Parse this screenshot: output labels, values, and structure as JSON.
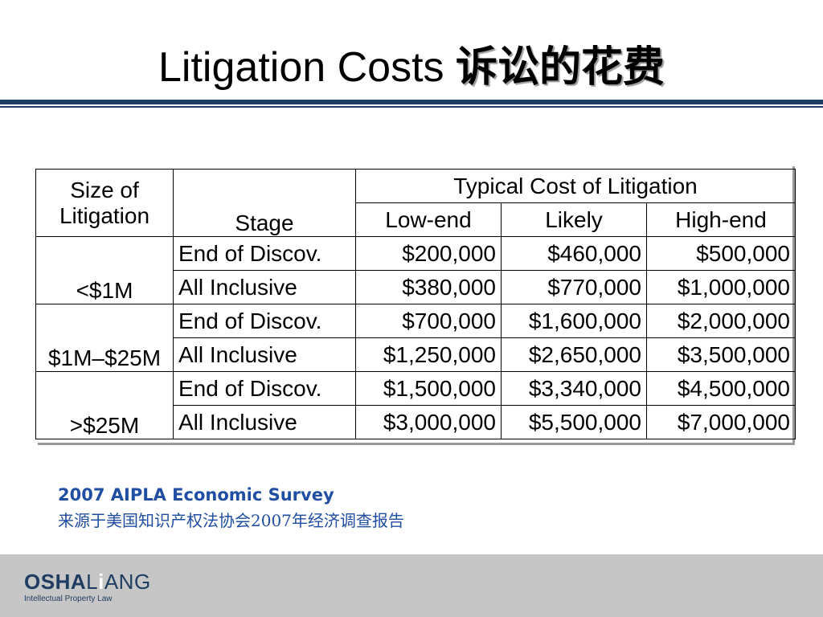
{
  "slide": {
    "title_en": "Litigation Costs",
    "title_cn": "诉讼的花费"
  },
  "table": {
    "header": {
      "size_label_line1": "Size of",
      "size_label_line2": "Litigation",
      "stage_label": "Stage",
      "group_label": "Typical Cost of Litigation",
      "cols": [
        "Low-end",
        "Likely",
        "High-end"
      ]
    },
    "groups": [
      {
        "size": "<$1M",
        "rows": [
          {
            "stage": "End of Discov.",
            "low": "$200,000",
            "likely": "$460,000",
            "high": "$500,000"
          },
          {
            "stage": "All Inclusive",
            "low": "$380,000",
            "likely": "$770,000",
            "high": "$1,000,000"
          }
        ]
      },
      {
        "size": "$1M–$25M",
        "rows": [
          {
            "stage": "End of Discov.",
            "low": "$700,000",
            "likely": "$1,600,000",
            "high": "$2,000,000"
          },
          {
            "stage": "All Inclusive",
            "low": "$1,250,000",
            "likely": "$2,650,000",
            "high": "$3,500,000"
          }
        ]
      },
      {
        "size": ">$25M",
        "rows": [
          {
            "stage": "End of Discov.",
            "low": "$1,500,000",
            "likely": "$3,340,000",
            "high": "$4,500,000"
          },
          {
            "stage": "All Inclusive",
            "low": "$3,000,000",
            "likely": "$5,500,000",
            "high": "$7,000,000"
          }
        ]
      }
    ]
  },
  "source": {
    "en": "2007 AIPLA Economic Survey",
    "cn": "来源于美国知识产权法协会2007年经济调查报告"
  },
  "footer": {
    "logo_part1": "OSHA",
    "logo_dot": "L",
    "logo_part2": "i",
    "logo_part3": "ANG",
    "tagline": "Intellectual Property Law"
  },
  "colors": {
    "title_rule": "#1f3c62",
    "source_text": "#1f4ea3",
    "footer_bg": "#c6c6c6"
  }
}
